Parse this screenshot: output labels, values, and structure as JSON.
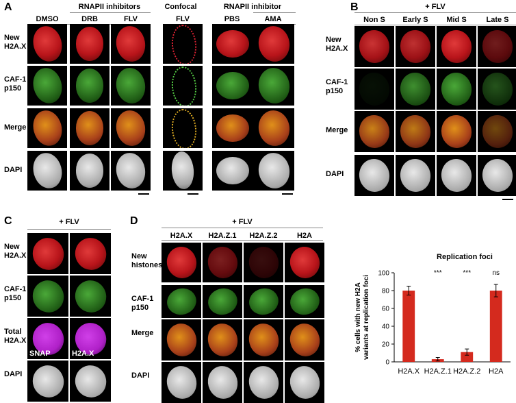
{
  "panels": {
    "A": {
      "letter": "A",
      "group_headers": {
        "inhib1": "RNAPII inhibitors",
        "confocal": "Confocal",
        "inhib2": "RNAPII inhibitor"
      },
      "columns": [
        "DMSO",
        "DRB",
        "FLV",
        "FLV",
        "PBS",
        "AMA"
      ],
      "rows": [
        "New\nH2A.X",
        "CAF-1\np150",
        "Merge",
        "DAPI"
      ]
    },
    "B": {
      "letter": "B",
      "group_header": "+ FLV",
      "columns": [
        "Non S",
        "Early S",
        "Mid S",
        "Late S"
      ],
      "rows": [
        "New\nH2A.X",
        "CAF-1\np150",
        "Merge",
        "DAPI"
      ]
    },
    "C": {
      "letter": "C",
      "group_header": "+ FLV",
      "rows": [
        "New\nH2A.X",
        "CAF-1\np150",
        "Total\nH2A.X",
        "DAPI"
      ],
      "overlay_left": "SNAP",
      "overlay_right": "H2A.X"
    },
    "D": {
      "letter": "D",
      "group_header": "+ FLV",
      "columns": [
        "H2A.X",
        "H2A.Z.1",
        "H2A.Z.2",
        "H2A"
      ],
      "rows": [
        "New\nhistones",
        "CAF-1\np150",
        "Merge",
        "DAPI"
      ]
    }
  },
  "chart_data": {
    "type": "bar",
    "title": "Replication foci",
    "ylabel": "% cells with new H2A\nvariants at replication foci",
    "categories": [
      "H2A.X",
      "H2A.Z.1",
      "H2A.Z.2",
      "H2A"
    ],
    "values": [
      80,
      3,
      11,
      80
    ],
    "errors": [
      5,
      2,
      3.5,
      7
    ],
    "significance": [
      "",
      "***",
      "***",
      "ns"
    ],
    "ylim": [
      0,
      100
    ],
    "yticks": [
      0,
      20,
      40,
      60,
      80,
      100
    ],
    "bar_color": "#d42a1e"
  },
  "colors": {
    "red": "#b8141a",
    "green": "#3a9a2a",
    "merge": "#c8781a",
    "dapi": "#c8c8c8",
    "magenta": "#b020c8"
  }
}
